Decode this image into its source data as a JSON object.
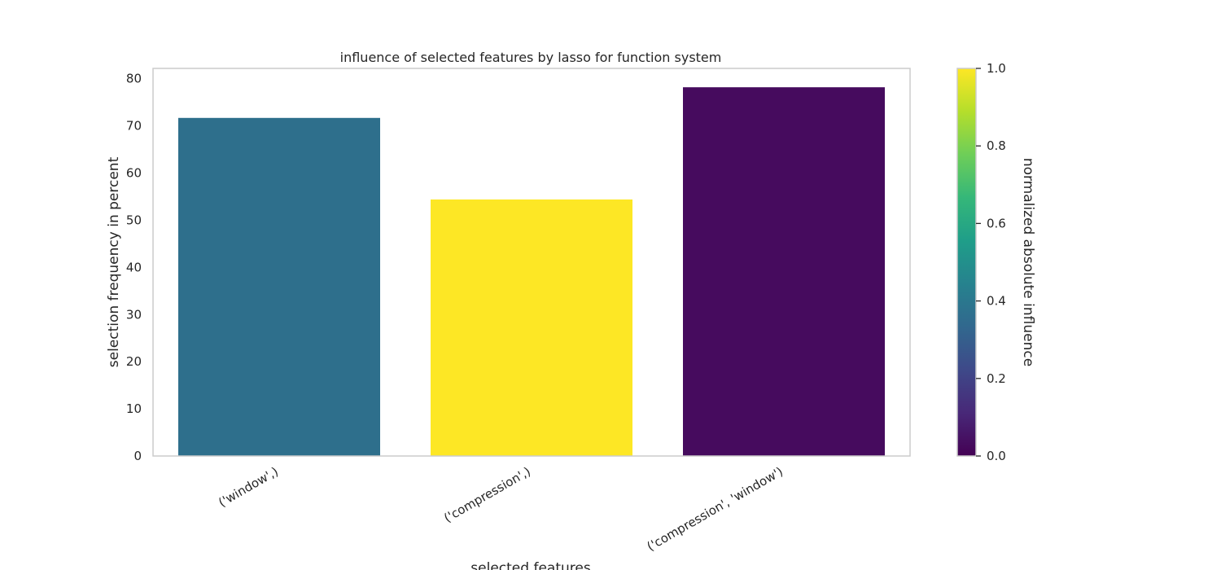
{
  "chart_data": {
    "type": "bar",
    "title": "influence of selected features by lasso for function system",
    "xlabel": "selected features",
    "ylabel": "selection frequency in percent",
    "categories": [
      "('window',)",
      "('compression',)",
      "('compression', 'window')"
    ],
    "values": [
      71.7,
      54.4,
      78.2
    ],
    "influence": [
      0.4,
      1.0,
      0.0
    ],
    "bar_colors": [
      "#2e6f8c",
      "#fde725",
      "#460b5e"
    ],
    "ylim": [
      0,
      82.2
    ],
    "yticks": [
      "0",
      "10",
      "20",
      "30",
      "40",
      "50",
      "60",
      "70",
      "80"
    ],
    "grid": false,
    "colorbar": {
      "label": "normalized absolute influence",
      "range": [
        0,
        1
      ],
      "ticks": [
        "0.0",
        "0.2",
        "0.4",
        "0.6",
        "0.8",
        "1.0"
      ],
      "colormap": "viridis",
      "stops": [
        "#440154",
        "#482878",
        "#3e4989",
        "#31688e",
        "#26828e",
        "#1f9e89",
        "#35b779",
        "#6ece58",
        "#b5de2b",
        "#fde725"
      ]
    },
    "frame_color": "#cccccc"
  }
}
